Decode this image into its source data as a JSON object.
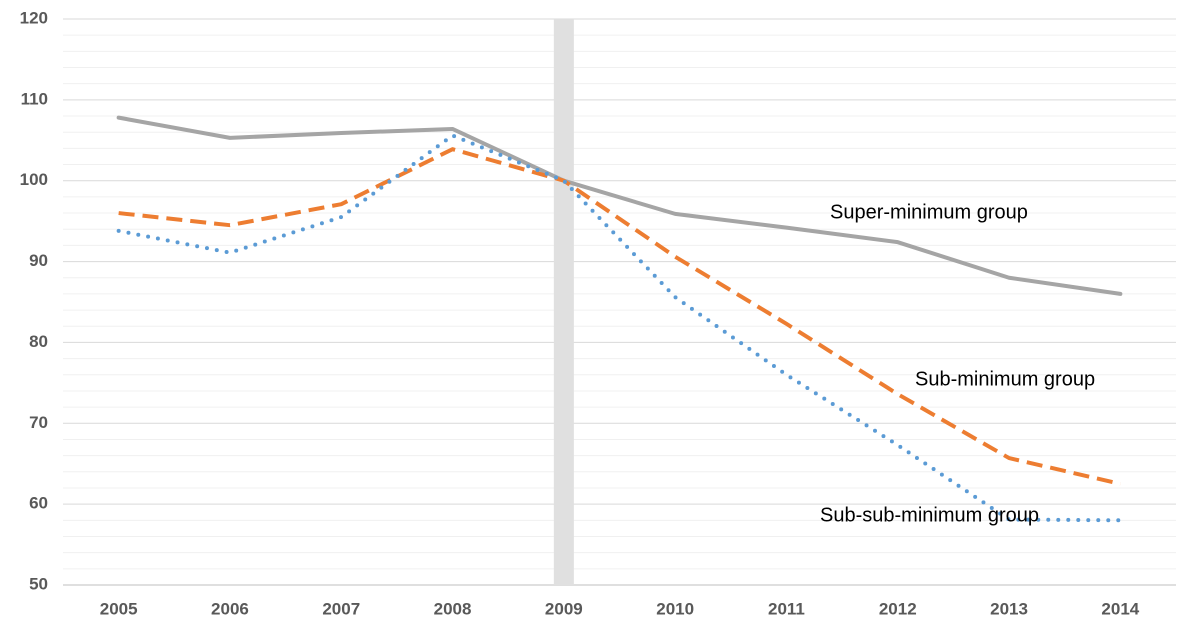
{
  "chart_data": {
    "type": "line",
    "categories": [
      "2005",
      "2006",
      "2007",
      "2008",
      "2009",
      "2010",
      "2011",
      "2012",
      "2013",
      "2014"
    ],
    "series": [
      {
        "name": "Super-minimum group",
        "color": "#a5a5a5",
        "style": "solid",
        "values": [
          107.8,
          105.3,
          105.9,
          106.4,
          100,
          95.9,
          94.2,
          92.4,
          88,
          86
        ]
      },
      {
        "name": "Sub-minimum group",
        "color": "#ed7d31",
        "style": "dashed",
        "values": [
          96,
          94.5,
          97.1,
          103.9,
          100,
          90.6,
          82.3,
          73.6,
          65.7,
          62.5
        ]
      },
      {
        "name": "Sub-sub-minimum group",
        "color": "#5b9bd5",
        "style": "dotted",
        "values": [
          93.8,
          91.1,
          95.5,
          105.6,
          100,
          85.6,
          76,
          67.3,
          58.1,
          58
        ]
      }
    ],
    "highlight_category": "2009",
    "ylim": [
      50,
      120
    ],
    "yticks": [
      50,
      60,
      70,
      80,
      90,
      100,
      110,
      120
    ],
    "minor_yticks": [
      52,
      54,
      56,
      58,
      62,
      64,
      66,
      68,
      72,
      74,
      76,
      78,
      82,
      84,
      86,
      88,
      92,
      94,
      96,
      98,
      102,
      104,
      106,
      108,
      112,
      114,
      116,
      118
    ],
    "grid": true
  }
}
